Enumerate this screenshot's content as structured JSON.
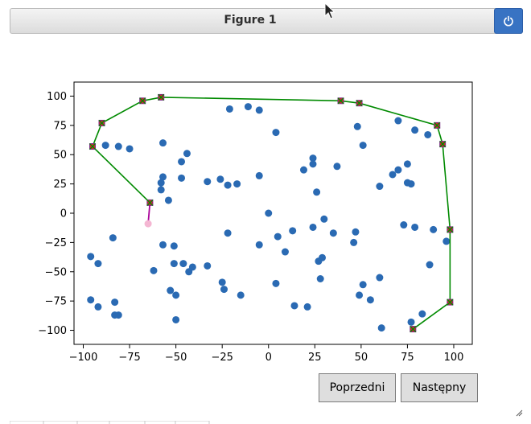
{
  "window": {
    "title": "Figure 1",
    "power_icon": "power-icon"
  },
  "buttons": {
    "prev": "Poprzedni",
    "next": "Następny"
  },
  "colors": {
    "points": "#2a6ab3",
    "hull": "#008a00",
    "marker_face": "#cc2a2a",
    "marker_edge": "#7a2c86",
    "current_edge": "#aa0099",
    "highlight": "#f4b6d2",
    "accent": "#3873c3"
  },
  "chart_data": {
    "type": "scatter",
    "title": "",
    "xlabel": "",
    "ylabel": "",
    "xlim": [
      -105,
      110
    ],
    "ylim": [
      -112,
      112
    ],
    "xticks": [
      -100,
      -75,
      -50,
      -25,
      0,
      25,
      50,
      75,
      100
    ],
    "yticks": [
      -100,
      -75,
      -50,
      -25,
      0,
      25,
      50,
      75,
      100
    ],
    "tick_labels_x": [
      "−100",
      "−75",
      "−50",
      "−25",
      "0",
      "25",
      "50",
      "75",
      "100"
    ],
    "tick_labels_y": [
      "−100",
      "−75",
      "−50",
      "−25",
      "0",
      "25",
      "50",
      "75",
      "100"
    ],
    "grid": false,
    "points": [
      [
        -21,
        89
      ],
      [
        -11,
        91
      ],
      [
        -5,
        88
      ],
      [
        4,
        69
      ],
      [
        -57,
        60
      ],
      [
        -88,
        58
      ],
      [
        -81,
        57
      ],
      [
        -75,
        55
      ],
      [
        -44,
        51
      ],
      [
        -47,
        44
      ],
      [
        -57,
        31
      ],
      [
        -58,
        26
      ],
      [
        -47,
        30
      ],
      [
        -33,
        27
      ],
      [
        -26,
        29
      ],
      [
        -22,
        24
      ],
      [
        -17,
        25
      ],
      [
        -5,
        32
      ],
      [
        -58,
        20
      ],
      [
        -54,
        11
      ],
      [
        24,
        47
      ],
      [
        24,
        42
      ],
      [
        19,
        37
      ],
      [
        37,
        40
      ],
      [
        26,
        18
      ],
      [
        60,
        23
      ],
      [
        67,
        33
      ],
      [
        70,
        37
      ],
      [
        75,
        42
      ],
      [
        75,
        26
      ],
      [
        77,
        25
      ],
      [
        70,
        79
      ],
      [
        79,
        71
      ],
      [
        86,
        67
      ],
      [
        48,
        74
      ],
      [
        51,
        58
      ],
      [
        0,
        0
      ],
      [
        30,
        -5
      ],
      [
        24,
        -12
      ],
      [
        13,
        -15
      ],
      [
        5,
        -20
      ],
      [
        -5,
        -27
      ],
      [
        -22,
        -17
      ],
      [
        35,
        -17
      ],
      [
        47,
        -16
      ],
      [
        46,
        -25
      ],
      [
        73,
        -10
      ],
      [
        79,
        -12
      ],
      [
        89,
        -14
      ],
      [
        96,
        -24
      ],
      [
        -84,
        -21
      ],
      [
        -57,
        -27
      ],
      [
        -51,
        -28
      ],
      [
        -51,
        -43
      ],
      [
        -46,
        -43
      ],
      [
        -43,
        -50
      ],
      [
        -41,
        -46
      ],
      [
        -33,
        -45
      ],
      [
        -62,
        -49
      ],
      [
        -96,
        -37
      ],
      [
        -92,
        -43
      ],
      [
        -25,
        -59
      ],
      [
        -24,
        -65
      ],
      [
        -15,
        -70
      ],
      [
        4,
        -60
      ],
      [
        9,
        -33
      ],
      [
        29,
        -38
      ],
      [
        27,
        -41
      ],
      [
        28,
        -56
      ],
      [
        51,
        -61
      ],
      [
        49,
        -70
      ],
      [
        55,
        -74
      ],
      [
        60,
        -55
      ],
      [
        87,
        -44
      ],
      [
        -96,
        -74
      ],
      [
        -92,
        -80
      ],
      [
        -83,
        -76
      ],
      [
        -83,
        -87
      ],
      [
        -81,
        -87
      ],
      [
        -53,
        -66
      ],
      [
        -50,
        -70
      ],
      [
        -50,
        -91
      ],
      [
        14,
        -79
      ],
      [
        21,
        -80
      ],
      [
        61,
        -98
      ],
      [
        77,
        -93
      ],
      [
        83,
        -86
      ]
    ],
    "hull": [
      [
        -64,
        9
      ],
      [
        -95,
        57
      ],
      [
        -90,
        77
      ],
      [
        -68,
        96
      ],
      [
        -58,
        99
      ],
      [
        39,
        96
      ],
      [
        49,
        94
      ],
      [
        91,
        75
      ],
      [
        94,
        59
      ],
      [
        98,
        -14
      ],
      [
        98,
        -76
      ],
      [
        78,
        -99
      ]
    ],
    "current_segment": [
      [
        -64,
        9
      ],
      [
        -65,
        -9
      ]
    ],
    "current_point": [
      -65,
      -9
    ]
  }
}
